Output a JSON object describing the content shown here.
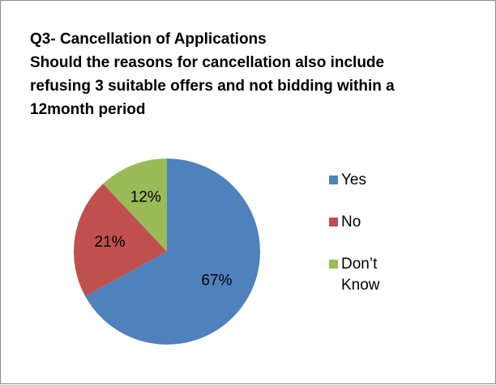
{
  "chart_data": {
    "type": "pie",
    "title": "Q3- Cancellation of Applications",
    "subtitle": "Should the reasons for cancellation also include refusing 3 suitable offers and not bidding within a 12month period",
    "categories": [
      "Yes",
      "No",
      "Don’t Know"
    ],
    "values": [
      67,
      21,
      12
    ],
    "value_labels": [
      "67%",
      "21%",
      "12%"
    ],
    "colors": [
      "#4f81bd",
      "#c0504d",
      "#9bbb59"
    ],
    "legend": "right"
  }
}
